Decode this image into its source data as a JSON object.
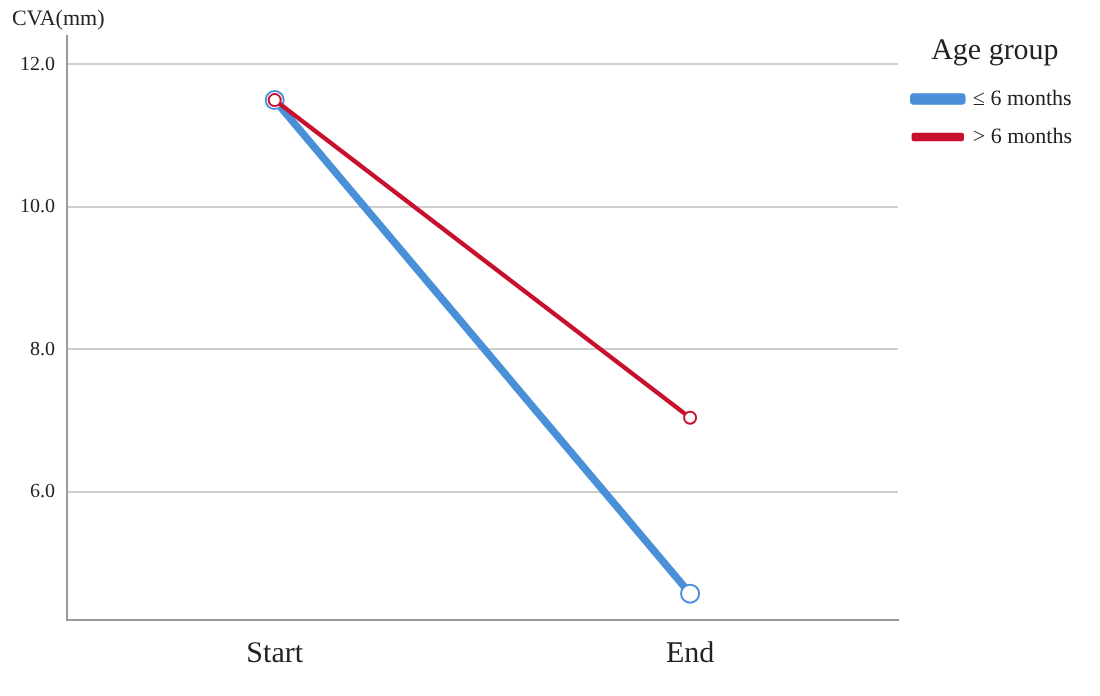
{
  "chart_data": {
    "type": "line",
    "ylabel": "CVA(mm)",
    "legend_title": "Age group",
    "categories": [
      "Start",
      "End"
    ],
    "series": [
      {
        "name": "≤ 6 months",
        "color": "#4a90d9",
        "values": [
          11.5,
          4.57
        ]
      },
      {
        "name": "> 6 months",
        "color": "#c8102e",
        "values": [
          11.5,
          7.04
        ]
      }
    ],
    "ylim": [
      4.2,
      12.4
    ],
    "yticks": [
      {
        "value": 6,
        "label": "6.0"
      },
      {
        "value": 8,
        "label": "8.0"
      },
      {
        "value": 10,
        "label": "10.0"
      },
      {
        "value": 12,
        "label": "12.0"
      }
    ],
    "grid": "y",
    "legend": "top right",
    "marker": "circle",
    "line_style": "solid"
  }
}
